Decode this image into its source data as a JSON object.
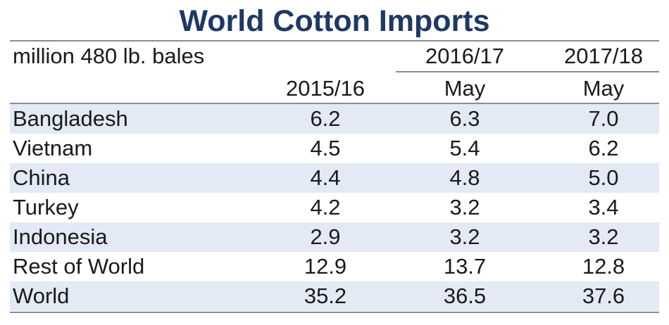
{
  "title": "World Cotton Imports",
  "unit_label": "million 480 lb. bales",
  "columns": [
    {
      "year": "",
      "sub": "2015/16"
    },
    {
      "year": "2016/17",
      "sub": "May"
    },
    {
      "year": "2017/18",
      "sub": "May"
    }
  ],
  "chart_data": {
    "type": "table",
    "title": "World Cotton Imports",
    "unit": "million 480 lb. bales",
    "column_headers": [
      "2015/16",
      "2016/17 May",
      "2017/18 May"
    ],
    "rows": [
      {
        "label": "Bangladesh",
        "values": [
          "6.2",
          "6.3",
          "7.0"
        ]
      },
      {
        "label": "Vietnam",
        "values": [
          "4.5",
          "5.4",
          "6.2"
        ]
      },
      {
        "label": "China",
        "values": [
          "4.4",
          "4.8",
          "5.0"
        ]
      },
      {
        "label": "Turkey",
        "values": [
          "4.2",
          "3.2",
          "3.4"
        ]
      },
      {
        "label": "Indonesia",
        "values": [
          "2.9",
          "3.2",
          "3.2"
        ]
      },
      {
        "label": "Rest of World",
        "values": [
          "12.9",
          "13.7",
          "12.8"
        ]
      },
      {
        "label": "World",
        "values": [
          "35.2",
          "36.5",
          "37.6"
        ]
      }
    ],
    "row_shading": "alternating light blue",
    "shade_color": "#e3eaf6",
    "title_color": "#1f3864"
  }
}
